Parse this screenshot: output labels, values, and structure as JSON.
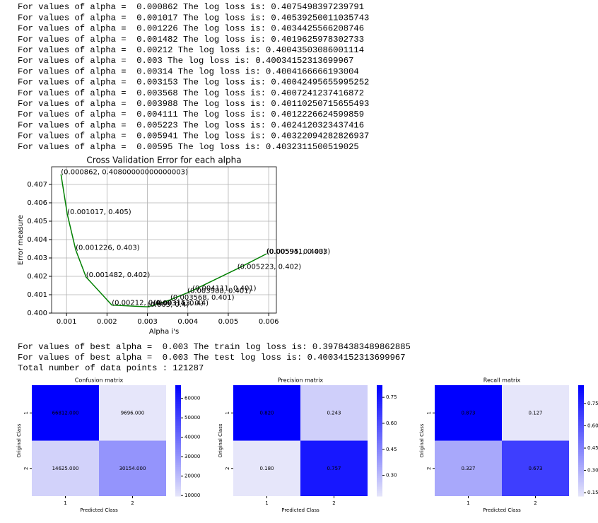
{
  "output_top": [
    "For values of alpha =  0.000862 The log loss is: 0.4075498397239791",
    "For values of alpha =  0.001017 The log loss is: 0.40539250011035743",
    "For values of alpha =  0.001226 The log loss is: 0.4034425566208746",
    "For values of alpha =  0.001482 The log loss is: 0.4019625978302733",
    "For values of alpha =  0.00212 The log loss is: 0.40043503086001114",
    "For values of alpha =  0.003 The log loss is: 0.40034152313699967",
    "For values of alpha =  0.00314 The log loss is: 0.4004166666193004",
    "For values of alpha =  0.003153 The log loss is: 0.40042495655995252",
    "For values of alpha =  0.003568 The log loss is: 0.4007241237416872",
    "For values of alpha =  0.003988 The log loss is: 0.40110250715655493",
    "For values of alpha =  0.004111 The log loss is: 0.4012226624599859",
    "For values of alpha =  0.005223 The log loss is: 0.4024120323437416",
    "For values of alpha =  0.005941 The log loss is: 0.40322094282826937",
    "For values of alpha =  0.00595 The log loss is: 0.4032311500519025"
  ],
  "chart_data": [
    {
      "type": "line",
      "title": "Cross Validation Error for each alpha",
      "xlabel": "Alpha i's",
      "ylabel": "Error measure",
      "x": [
        0.000862,
        0.001017,
        0.001226,
        0.001482,
        0.00212,
        0.003,
        0.00314,
        0.003153,
        0.003568,
        0.003988,
        0.004111,
        0.005223,
        0.005941,
        0.00595
      ],
      "values": [
        0.4075498397239791,
        0.40539250011035743,
        0.4034425566208746,
        0.4019625978302733,
        0.40043503086001114,
        0.40034152313699967,
        0.4004166666193004,
        0.4004249565599525,
        0.4007241237416872,
        0.40110250715655493,
        0.4012226624599859,
        0.4024120323437416,
        0.40322094282826937,
        0.4032311500519025
      ],
      "value_labels": [
        "(0.000862, 0.40800000000000003)",
        "(0.001017, 0.405)",
        "(0.001226, 0.403)",
        "(0.001482, 0.402)",
        "(0.00212, 0.4)",
        "(0.003, 0.4)",
        "(0.00314, 0.4)",
        "(0.003153, 0.4)",
        "(0.003568, 0.401)",
        "(0.003988, 0.401)",
        "(0.004111, 0.401)",
        "(0.005223, 0.402)",
        "(0.005941, 0.403)",
        "(0.00595, 0.403)"
      ],
      "color": "#008000",
      "xlim": [
        0.00063,
        0.00619
      ],
      "ylim": [
        0.4,
        0.40796
      ],
      "xticks": [
        0.001,
        0.002,
        0.003,
        0.004,
        0.005,
        0.006
      ],
      "yticks": [
        {
          "value": 0.4,
          "label": "0.400"
        },
        0.401,
        0.402,
        0.403,
        0.404,
        0.405,
        0.406,
        0.407
      ],
      "grid": true
    },
    {
      "type": "heatmap",
      "title": "Confusion matrix",
      "xlabel": "Predicted Class",
      "ylabel": "Original Class",
      "x_categories": [
        "1",
        "2"
      ],
      "y_categories": [
        "1",
        "2"
      ],
      "values": [
        [
          66812,
          9696
        ],
        [
          14625,
          30154
        ]
      ],
      "value_labels": [
        [
          "66812.000",
          "9696.000"
        ],
        [
          "14625.000",
          "30154.000"
        ]
      ],
      "cmap": [
        "#e6e6fa",
        "#0000ff"
      ],
      "colorbar_ticks": [
        10000,
        20000,
        30000,
        40000,
        50000,
        60000
      ]
    },
    {
      "type": "heatmap",
      "title": "Precision matrix",
      "xlabel": "Predicted Class",
      "ylabel": "Original Class",
      "x_categories": [
        "1",
        "2"
      ],
      "y_categories": [
        "1",
        "2"
      ],
      "values": [
        [
          0.82,
          0.243
        ],
        [
          0.18,
          0.757
        ]
      ],
      "value_labels": [
        [
          "0.820",
          "0.243"
        ],
        [
          "0.180",
          "0.757"
        ]
      ],
      "cmap": [
        "#e6e6fa",
        "#0000ff"
      ],
      "colorbar_ticks": [
        {
          "value": 0.3,
          "label": "0.30"
        },
        0.45,
        {
          "value": 0.6,
          "label": "0.60"
        },
        0.75
      ]
    },
    {
      "type": "heatmap",
      "title": "Recall matrix",
      "xlabel": "Predicted Class",
      "ylabel": "Original Class",
      "x_categories": [
        "1",
        "2"
      ],
      "y_categories": [
        "1",
        "2"
      ],
      "values": [
        [
          0.873,
          0.127
        ],
        [
          0.327,
          0.673
        ]
      ],
      "value_labels": [
        [
          "0.873",
          "0.127"
        ],
        [
          "0.327",
          "0.673"
        ]
      ],
      "cmap": [
        "#e6e6fa",
        "#0000ff"
      ],
      "colorbar_ticks": [
        0.15,
        {
          "value": 0.3,
          "label": "0.30"
        },
        0.45,
        {
          "value": 0.6,
          "label": "0.60"
        },
        0.75
      ]
    }
  ],
  "output_mid": [
    "For values of best alpha =  0.003 The train log loss is: 0.39784383489862885",
    "For values of best alpha =  0.003 The test log loss is: 0.40034152313699967",
    "Total number of data points : 121287"
  ]
}
